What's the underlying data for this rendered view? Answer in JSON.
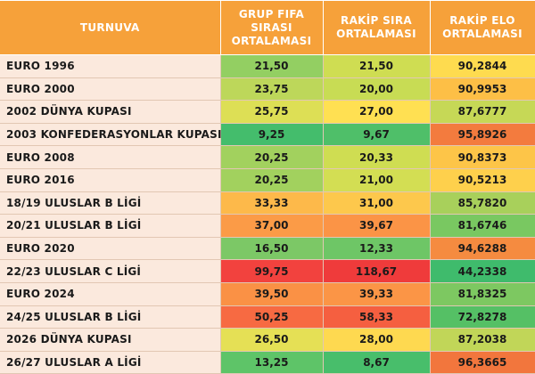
{
  "table": {
    "headers": {
      "tournament": "TURNUVA",
      "fifa_rank": [
        "GRUP FIFA",
        "SIRASI",
        "ORTALAMASI"
      ],
      "opp_rank": [
        "RAKİP SIRA",
        "ORTALAMASI"
      ],
      "opp_elo": [
        "RAKİP ELO",
        "ORTALAMASI"
      ]
    },
    "rows": [
      {
        "name": "EURO 1996",
        "fifa": "21,50",
        "rank": "21,50",
        "elo": "90,2844",
        "c": [
          "#93cf62",
          "#cfdd52",
          "#fedb4f"
        ]
      },
      {
        "name": "EURO 2000",
        "fifa": "23,75",
        "rank": "20,00",
        "elo": "90,9953",
        "c": [
          "#bdd75a",
          "#c8dc54",
          "#fdbf46"
        ]
      },
      {
        "name": "2002 DÜNYA KUPASI",
        "fifa": "25,75",
        "rank": "27,00",
        "elo": "87,6777",
        "c": [
          "#dddf55",
          "#ffe052",
          "#c6d856"
        ]
      },
      {
        "name": "2003 KONFEDERASYONLAR KUPASI",
        "fifa": "9,25",
        "rank": "9,67",
        "elo": "95,8926",
        "c": [
          "#44bd6c",
          "#4fbf69",
          "#f37b3e"
        ]
      },
      {
        "name": "EURO 2008",
        "fifa": "20,25",
        "rank": "20,33",
        "elo": "90,8373",
        "c": [
          "#a2d15e",
          "#cfdd52",
          "#fdc548"
        ]
      },
      {
        "name": "EURO 2016",
        "fifa": "20,25",
        "rank": "21,00",
        "elo": "90,5213",
        "c": [
          "#a2d15e",
          "#d3de53",
          "#fed04c"
        ]
      },
      {
        "name": "18/19 ULUSLAR B LİGİ",
        "fifa": "33,33",
        "rank": "31,00",
        "elo": "85,7820",
        "c": [
          "#fdb94a",
          "#fdc84c",
          "#a8d05b"
        ]
      },
      {
        "name": "20/21 ULUSLAR B LİGİ",
        "fifa": "37,00",
        "rank": "39,67",
        "elo": "81,6746",
        "c": [
          "#fb9b47",
          "#fb9446",
          "#79c861"
        ]
      },
      {
        "name": "EURO 2020",
        "fifa": "16,50",
        "rank": "12,33",
        "elo": "94,6288",
        "c": [
          "#7cc866",
          "#6ec666",
          "#f58b40"
        ]
      },
      {
        "name": "22/23 ULUSLAR C LİGİ",
        "fifa": "99,75",
        "rank": "118,67",
        "elo": "44,2338",
        "c": [
          "#f2423e",
          "#ef3b3b",
          "#3fbb6c"
        ]
      },
      {
        "name": "EURO 2024",
        "fifa": "39,50",
        "rank": "39,33",
        "elo": "81,8325",
        "c": [
          "#fa9145",
          "#fb9546",
          "#7dc861"
        ]
      },
      {
        "name": "24/25 ULUSLAR B LİGİ",
        "fifa": "50,25",
        "rank": "58,33",
        "elo": "72,8278",
        "c": [
          "#f76a42",
          "#f55f40",
          "#55c065"
        ]
      },
      {
        "name": "2026 DÜNYA KUPASI",
        "fifa": "26,50",
        "rank": "28,00",
        "elo": "87,2038",
        "c": [
          "#e5e055",
          "#fed950",
          "#c1d658"
        ]
      },
      {
        "name": "26/27 ULUSLAR A LİGİ",
        "fifa": "13,25",
        "rank": "8,67",
        "elo": "96,3665",
        "c": [
          "#5ec468",
          "#48be6b",
          "#f2763d"
        ]
      }
    ]
  }
}
